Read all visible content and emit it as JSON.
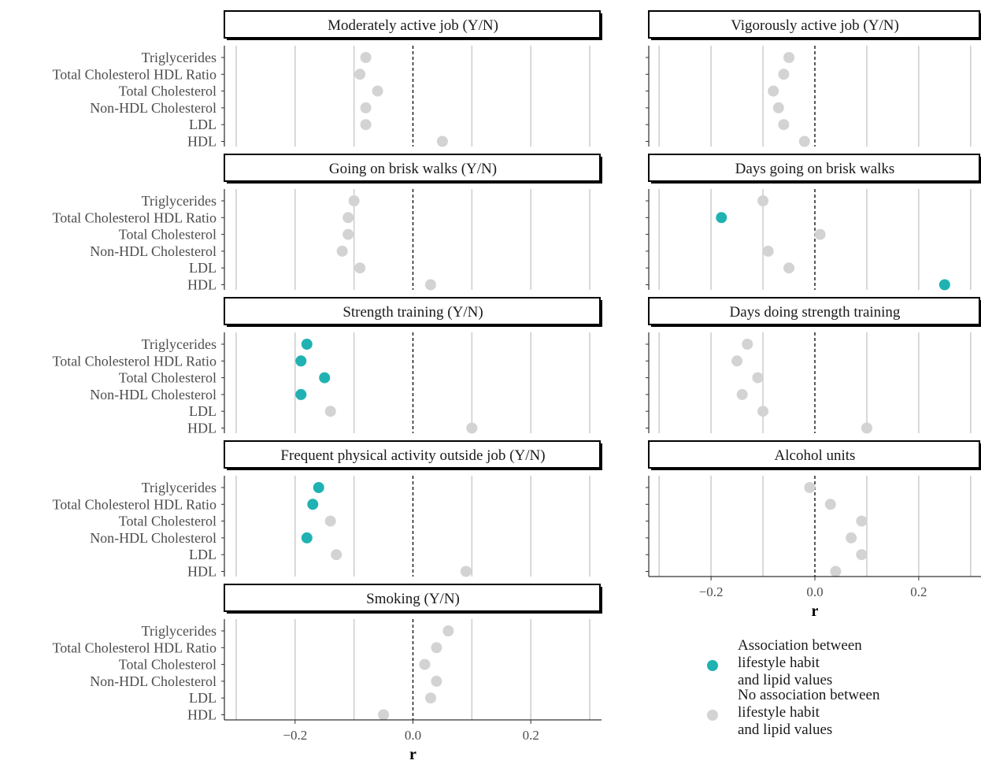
{
  "chart_data": {
    "type": "scatter",
    "xlabel": "r",
    "xlim": [
      -0.32,
      0.32
    ],
    "x_ticks": [
      -0.2,
      0.0,
      0.2
    ],
    "x_tick_labels": [
      "−0.2",
      "0.0",
      "0.2"
    ],
    "grid": true,
    "reference_line": {
      "x": 0,
      "style": "dashed"
    },
    "categories": [
      "Triglycerides",
      "Total Cholesterol HDL Ratio",
      "Total Cholesterol",
      "Non-HDL Cholesterol",
      "LDL",
      "HDL"
    ],
    "colors": {
      "associated": "#20b2b2",
      "not_associated": "#d3d3d3"
    },
    "legend": {
      "placement": "bottom-right",
      "entries": [
        {
          "key": "associated",
          "lines": [
            "Association between",
            "lifestyle habit",
            "and lipid values"
          ]
        },
        {
          "key": "not_associated",
          "lines": [
            "No association between",
            "lifestyle habit",
            "and lipid values"
          ]
        }
      ]
    },
    "panels": [
      {
        "title": "Moderately active job (Y/N)",
        "values": [
          -0.08,
          -0.09,
          -0.06,
          -0.08,
          -0.08,
          0.05
        ],
        "associated": [
          false,
          false,
          false,
          false,
          false,
          false
        ]
      },
      {
        "title": "Vigorously active job (Y/N)",
        "values": [
          -0.05,
          -0.06,
          -0.08,
          -0.07,
          -0.06,
          -0.02
        ],
        "associated": [
          false,
          false,
          false,
          false,
          false,
          false
        ]
      },
      {
        "title": "Going on brisk walks (Y/N)",
        "values": [
          -0.1,
          -0.11,
          -0.11,
          -0.12,
          -0.09,
          0.03
        ],
        "associated": [
          false,
          false,
          false,
          false,
          false,
          false
        ]
      },
      {
        "title": "Days going on brisk walks",
        "values": [
          -0.1,
          -0.18,
          0.01,
          -0.09,
          -0.05,
          0.25
        ],
        "associated": [
          false,
          true,
          false,
          false,
          false,
          true
        ]
      },
      {
        "title": "Strength training (Y/N)",
        "values": [
          -0.18,
          -0.19,
          -0.15,
          -0.19,
          -0.14,
          0.1
        ],
        "associated": [
          true,
          true,
          true,
          true,
          false,
          false
        ]
      },
      {
        "title": "Days doing strength training",
        "values": [
          -0.13,
          -0.15,
          -0.11,
          -0.14,
          -0.1,
          0.1
        ],
        "associated": [
          false,
          false,
          false,
          false,
          false,
          false
        ]
      },
      {
        "title": "Frequent physical activity outside job (Y/N)",
        "values": [
          -0.16,
          -0.17,
          -0.14,
          -0.18,
          -0.13,
          0.09
        ],
        "associated": [
          true,
          true,
          false,
          true,
          false,
          false
        ]
      },
      {
        "title": "Alcohol units",
        "values": [
          -0.01,
          0.03,
          0.09,
          0.07,
          0.09,
          0.04
        ],
        "associated": [
          false,
          false,
          false,
          false,
          false,
          false
        ]
      },
      {
        "title": "Smoking (Y/N)",
        "values": [
          0.06,
          0.04,
          0.02,
          0.04,
          0.03,
          -0.05
        ],
        "associated": [
          false,
          false,
          false,
          false,
          false,
          false
        ]
      }
    ]
  }
}
